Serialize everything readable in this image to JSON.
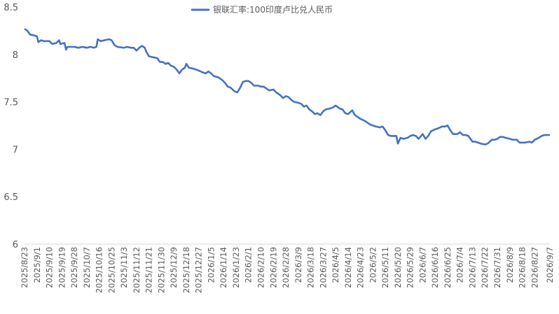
{
  "chart_data": {
    "type": "line",
    "title": "",
    "xlabel": "",
    "ylabel": "",
    "ylim": [
      6,
      8.5
    ],
    "y_ticks": [
      "6",
      "6.5",
      "7",
      "7.5",
      "8",
      "8.5"
    ],
    "grid": false,
    "legend_position": "top",
    "x_tick_labels": [
      "2025/8/23",
      "2025/9/1",
      "2025/9/10",
      "2025/9/19",
      "2025/9/28",
      "2025/10/7",
      "2025/10/16",
      "2025/10/25",
      "2025/11/3",
      "2025/11/12",
      "2025/11/21",
      "2025/11/30",
      "2025/12/9",
      "2025/12/18",
      "2025/12/27",
      "2026/1/5",
      "2026/1/14",
      "2026/1/23",
      "2026/2/1",
      "2026/2/10",
      "2026/2/19",
      "2026/2/28",
      "2026/3/9",
      "2026/3/18",
      "2026/3/27",
      "2026/4/5",
      "2026/4/14",
      "2026/4/23",
      "2026/5/2",
      "2026/5/11",
      "2026/5/20",
      "2026/5/29",
      "2026/6/7",
      "2026/6/16",
      "2026/6/25",
      "2026/7/4",
      "2026/7/13",
      "2026/7/22",
      "2026/7/31",
      "2026/8/9",
      "2026/8/18",
      "2026/8/27",
      "2026/9/7"
    ],
    "series": [
      {
        "name": "银联汇率:100印度卢比兑人民币",
        "color": "#4472C4",
        "points": [
          [
            "2025/8/23",
            8.27
          ],
          [
            "2025/8/25",
            8.25
          ],
          [
            "2025/8/27",
            8.21
          ],
          [
            "2025/8/30",
            8.2
          ],
          [
            "2025/9/1",
            8.19
          ],
          [
            "2025/9/2",
            8.13
          ],
          [
            "2025/9/4",
            8.15
          ],
          [
            "2025/9/6",
            8.14
          ],
          [
            "2025/9/10",
            8.14
          ],
          [
            "2025/9/12",
            8.11
          ],
          [
            "2025/9/15",
            8.12
          ],
          [
            "2025/9/17",
            8.15
          ],
          [
            "2025/9/18",
            8.11
          ],
          [
            "2025/9/21",
            8.12
          ],
          [
            "2025/9/22",
            8.05
          ],
          [
            "2025/9/23",
            8.08
          ],
          [
            "2025/9/28",
            8.08
          ],
          [
            "2025/10/1",
            8.07
          ],
          [
            "2025/10/4",
            8.08
          ],
          [
            "2025/10/7",
            8.07
          ],
          [
            "2025/10/10",
            8.08
          ],
          [
            "2025/10/12",
            8.07
          ],
          [
            "2025/10/14",
            8.08
          ],
          [
            "2025/10/15",
            8.16
          ],
          [
            "2025/10/17",
            8.14
          ],
          [
            "2025/10/20",
            8.15
          ],
          [
            "2025/10/23",
            8.16
          ],
          [
            "2025/10/25",
            8.15
          ],
          [
            "2025/10/27",
            8.1
          ],
          [
            "2025/10/29",
            8.08
          ],
          [
            "2025/11/3",
            8.07
          ],
          [
            "2025/11/5",
            8.08
          ],
          [
            "2025/11/8",
            8.07
          ],
          [
            "2025/11/10",
            8.07
          ],
          [
            "2025/11/12",
            8.04
          ],
          [
            "2025/11/14",
            8.07
          ],
          [
            "2025/11/16",
            8.09
          ],
          [
            "2025/11/18",
            8.07
          ],
          [
            "2025/11/19",
            8.03
          ],
          [
            "2025/11/21",
            7.98
          ],
          [
            "2025/11/24",
            7.97
          ],
          [
            "2025/11/27",
            7.96
          ],
          [
            "2025/11/29",
            7.92
          ],
          [
            "2025/12/1",
            7.92
          ],
          [
            "2025/12/3",
            7.9
          ],
          [
            "2025/12/5",
            7.91
          ],
          [
            "2025/12/7",
            7.88
          ],
          [
            "2025/12/9",
            7.87
          ],
          [
            "2025/12/11",
            7.84
          ],
          [
            "2025/12/13",
            7.8
          ],
          [
            "2025/12/15",
            7.84
          ],
          [
            "2025/12/17",
            7.86
          ],
          [
            "2025/12/18",
            7.9
          ],
          [
            "2025/12/20",
            7.86
          ],
          [
            "2025/12/23",
            7.85
          ],
          [
            "2025/12/27",
            7.83
          ],
          [
            "2025/12/30",
            7.81
          ],
          [
            "2026/1/1",
            7.8
          ],
          [
            "2026/1/3",
            7.82
          ],
          [
            "2026/1/5",
            7.8
          ],
          [
            "2026/1/7",
            7.77
          ],
          [
            "2026/1/10",
            7.76
          ],
          [
            "2026/1/13",
            7.73
          ],
          [
            "2026/1/15",
            7.7
          ],
          [
            "2026/1/17",
            7.66
          ],
          [
            "2026/1/19",
            7.65
          ],
          [
            "2026/1/22",
            7.61
          ],
          [
            "2026/1/24",
            7.6
          ],
          [
            "2026/1/26",
            7.65
          ],
          [
            "2026/1/28",
            7.71
          ],
          [
            "2026/1/30",
            7.72
          ],
          [
            "2026/2/1",
            7.72
          ],
          [
            "2026/2/3",
            7.7
          ],
          [
            "2026/2/5",
            7.67
          ],
          [
            "2026/2/8",
            7.67
          ],
          [
            "2026/2/10",
            7.66
          ],
          [
            "2026/2/12",
            7.66
          ],
          [
            "2026/2/14",
            7.64
          ],
          [
            "2026/2/16",
            7.62
          ],
          [
            "2026/2/19",
            7.63
          ],
          [
            "2026/2/21",
            7.6
          ],
          [
            "2026/2/24",
            7.57
          ],
          [
            "2026/2/26",
            7.54
          ],
          [
            "2026/2/28",
            7.56
          ],
          [
            "2026/3/2",
            7.55
          ],
          [
            "2026/3/4",
            7.52
          ],
          [
            "2026/3/6",
            7.5
          ],
          [
            "2026/3/9",
            7.49
          ],
          [
            "2026/3/11",
            7.48
          ],
          [
            "2026/3/13",
            7.45
          ],
          [
            "2026/3/15",
            7.46
          ],
          [
            "2026/3/17",
            7.42
          ],
          [
            "2026/3/19",
            7.4
          ],
          [
            "2026/3/21",
            7.37
          ],
          [
            "2026/3/23",
            7.38
          ],
          [
            "2026/3/25",
            7.36
          ],
          [
            "2026/3/27",
            7.4
          ],
          [
            "2026/3/29",
            7.42
          ],
          [
            "2026/4/1",
            7.43
          ],
          [
            "2026/4/3",
            7.44
          ],
          [
            "2026/4/5",
            7.46
          ],
          [
            "2026/4/8",
            7.43
          ],
          [
            "2026/4/10",
            7.42
          ],
          [
            "2026/4/12",
            7.38
          ],
          [
            "2026/4/14",
            7.37
          ],
          [
            "2026/4/17",
            7.41
          ],
          [
            "2026/4/19",
            7.36
          ],
          [
            "2026/4/21",
            7.34
          ],
          [
            "2026/4/23",
            7.32
          ],
          [
            "2026/4/26",
            7.3
          ],
          [
            "2026/4/28",
            7.28
          ],
          [
            "2026/4/30",
            7.26
          ],
          [
            "2026/5/2",
            7.25
          ],
          [
            "2026/5/4",
            7.24
          ],
          [
            "2026/5/7",
            7.23
          ],
          [
            "2026/5/9",
            7.24
          ],
          [
            "2026/5/11",
            7.2
          ],
          [
            "2026/5/13",
            7.15
          ],
          [
            "2026/5/15",
            7.14
          ],
          [
            "2026/5/17",
            7.14
          ],
          [
            "2026/5/19",
            7.14
          ],
          [
            "2026/5/20",
            7.06
          ],
          [
            "2026/5/22",
            7.12
          ],
          [
            "2026/5/24",
            7.11
          ],
          [
            "2026/5/27",
            7.12
          ],
          [
            "2026/5/29",
            7.14
          ],
          [
            "2026/5/31",
            7.15
          ],
          [
            "2026/6/2",
            7.14
          ],
          [
            "2026/6/4",
            7.11
          ],
          [
            "2026/6/7",
            7.16
          ],
          [
            "2026/6/9",
            7.11
          ],
          [
            "2026/6/11",
            7.14
          ],
          [
            "2026/6/13",
            7.19
          ],
          [
            "2026/6/16",
            7.21
          ],
          [
            "2026/6/18",
            7.22
          ],
          [
            "2026/6/21",
            7.24
          ],
          [
            "2026/6/23",
            7.24
          ],
          [
            "2026/6/25",
            7.25
          ],
          [
            "2026/6/27",
            7.2
          ],
          [
            "2026/6/29",
            7.16
          ],
          [
            "2026/7/2",
            7.16
          ],
          [
            "2026/7/4",
            7.18
          ],
          [
            "2026/7/6",
            7.15
          ],
          [
            "2026/7/8",
            7.15
          ],
          [
            "2026/7/10",
            7.14
          ],
          [
            "2026/7/13",
            7.08
          ],
          [
            "2026/7/15",
            7.08
          ],
          [
            "2026/7/17",
            7.07
          ],
          [
            "2026/7/19",
            7.06
          ],
          [
            "2026/7/22",
            7.05
          ],
          [
            "2026/7/24",
            7.06
          ],
          [
            "2026/7/27",
            7.1
          ],
          [
            "2026/7/29",
            7.1
          ],
          [
            "2026/7/31",
            7.11
          ],
          [
            "2026/8/2",
            7.13
          ],
          [
            "2026/8/4",
            7.13
          ],
          [
            "2026/8/6",
            7.12
          ],
          [
            "2026/8/9",
            7.11
          ],
          [
            "2026/8/11",
            7.1
          ],
          [
            "2026/8/14",
            7.1
          ],
          [
            "2026/8/16",
            7.07
          ],
          [
            "2026/8/18",
            7.07
          ],
          [
            "2026/8/20",
            7.07
          ],
          [
            "2026/8/23",
            7.08
          ],
          [
            "2026/8/25",
            7.07
          ],
          [
            "2026/8/27",
            7.1
          ],
          [
            "2026/8/30",
            7.12
          ],
          [
            "2026/9/1",
            7.14
          ],
          [
            "2026/9/3",
            7.15
          ],
          [
            "2026/9/7",
            7.15
          ]
        ]
      }
    ]
  }
}
